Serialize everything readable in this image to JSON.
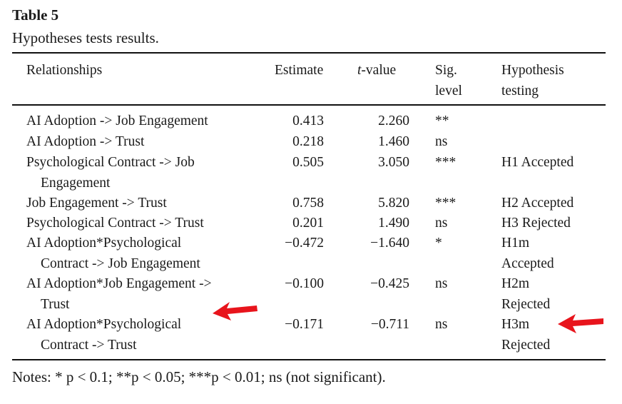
{
  "table": {
    "label": "Table 5",
    "caption": "Hypotheses tests results.",
    "headers": {
      "relationships": "Relationships",
      "estimate": "Estimate",
      "tvalue_prefix": "t",
      "tvalue_suffix": "-value",
      "sig_line1": "Sig.",
      "sig_line2": "level",
      "hyp_line1": "Hypothesis",
      "hyp_line2": "testing"
    },
    "rows": [
      {
        "rel1": "AI Adoption -> Job Engagement",
        "rel2": "",
        "estimate": "0.413",
        "tvalue": "2.260",
        "sig": "**",
        "hyp1": "",
        "hyp2": ""
      },
      {
        "rel1": "AI Adoption -> Trust",
        "rel2": "",
        "estimate": "0.218",
        "tvalue": "1.460",
        "sig": "ns",
        "hyp1": "",
        "hyp2": ""
      },
      {
        "rel1": "Psychological Contract -> Job",
        "rel2": "Engagement",
        "estimate": "0.505",
        "tvalue": "3.050",
        "sig": "***",
        "hyp1": "H1 Accepted",
        "hyp2": ""
      },
      {
        "rel1": "Job Engagement -> Trust",
        "rel2": "",
        "estimate": "0.758",
        "tvalue": "5.820",
        "sig": "***",
        "hyp1": "H2 Accepted",
        "hyp2": ""
      },
      {
        "rel1": "Psychological Contract -> Trust",
        "rel2": "",
        "estimate": "0.201",
        "tvalue": "1.490",
        "sig": "ns",
        "hyp1": "H3 Rejected",
        "hyp2": ""
      },
      {
        "rel1": "AI Adoption*Psychological",
        "rel2": "Contract -> Job Engagement",
        "estimate": "−0.472",
        "tvalue": "−1.640",
        "sig": "*",
        "hyp1": "H1m",
        "hyp2": "Accepted"
      },
      {
        "rel1": "AI Adoption*Job Engagement ->",
        "rel2": "Trust",
        "estimate": "−0.100",
        "tvalue": "−0.425",
        "sig": "ns",
        "hyp1": "H2m",
        "hyp2": "Rejected"
      },
      {
        "rel1": "AI Adoption*Psychological",
        "rel2": "Contract -> Trust",
        "estimate": "−0.171",
        "tvalue": "−0.711",
        "sig": "ns",
        "hyp1": "H3m",
        "hyp2": "Rejected"
      }
    ],
    "notes": "Notes: * p < 0.1; **p < 0.05; ***p < 0.01; ns (not significant)."
  },
  "annotations": {
    "arrow_color": "#e8141c",
    "arrows": [
      {
        "icon": "red-arrow-left-icon",
        "points_to": "row-8-relationship"
      },
      {
        "icon": "red-arrow-left-icon",
        "points_to": "row-8-hypothesis"
      }
    ]
  }
}
